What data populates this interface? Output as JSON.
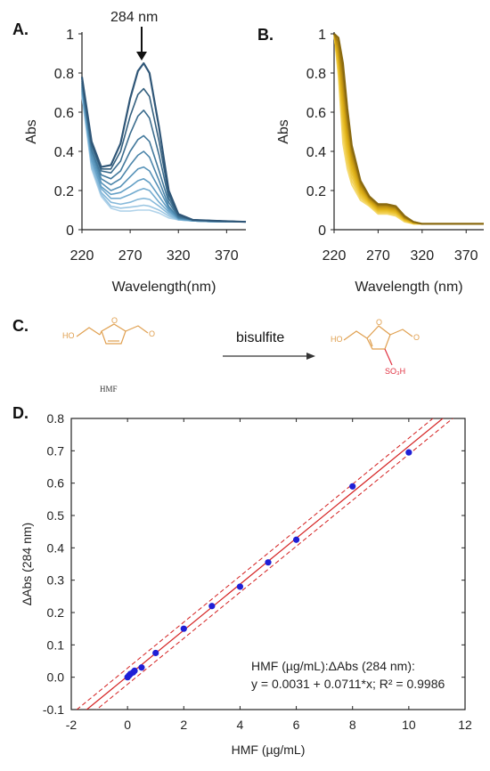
{
  "panels": {
    "A": "A.",
    "B": "B.",
    "C": "C.",
    "D": "D."
  },
  "reaction": {
    "reagent": "bisulfite",
    "reactant_label": "HMF",
    "oh_left": "HO",
    "oh_right": "HO",
    "o_ring_left": "O",
    "o_ald_left": "O",
    "o_ring_right": "O",
    "o_ald_right": "O",
    "so3h": "SO₃H",
    "colors": {
      "skeleton": "#e0a050",
      "sulfonate": "#e03040"
    }
  },
  "chart_data": [
    {
      "id": "A",
      "type": "line",
      "title": "",
      "xlabel": "Wavelength(nm)",
      "ylabel": "Abs",
      "xlim": [
        220,
        390
      ],
      "ylim": [
        0,
        1
      ],
      "xticks": [
        220,
        270,
        320,
        370
      ],
      "yticks": [
        0,
        0.2,
        0.4,
        0.6,
        0.8,
        1
      ],
      "annotation": {
        "text": "284 nm",
        "x": 284,
        "y": 0.86
      },
      "x": [
        220,
        230,
        240,
        250,
        260,
        270,
        278,
        284,
        290,
        300,
        310,
        320,
        335,
        360,
        390
      ],
      "series": [
        {
          "values": [
            0.78,
            0.45,
            0.32,
            0.33,
            0.44,
            0.67,
            0.81,
            0.85,
            0.8,
            0.52,
            0.2,
            0.08,
            0.05,
            0.045,
            0.04
          ]
        },
        {
          "values": [
            0.77,
            0.44,
            0.31,
            0.31,
            0.4,
            0.58,
            0.69,
            0.72,
            0.68,
            0.45,
            0.18,
            0.075,
            0.05,
            0.045,
            0.04
          ]
        },
        {
          "values": [
            0.76,
            0.43,
            0.3,
            0.29,
            0.35,
            0.49,
            0.58,
            0.61,
            0.57,
            0.38,
            0.16,
            0.07,
            0.05,
            0.045,
            0.04
          ]
        },
        {
          "values": [
            0.75,
            0.41,
            0.28,
            0.26,
            0.3,
            0.4,
            0.46,
            0.48,
            0.45,
            0.3,
            0.14,
            0.065,
            0.05,
            0.045,
            0.04
          ]
        },
        {
          "values": [
            0.74,
            0.4,
            0.26,
            0.23,
            0.26,
            0.33,
            0.38,
            0.4,
            0.37,
            0.25,
            0.12,
            0.06,
            0.05,
            0.045,
            0.04
          ]
        },
        {
          "values": [
            0.73,
            0.38,
            0.24,
            0.2,
            0.22,
            0.27,
            0.31,
            0.32,
            0.3,
            0.21,
            0.11,
            0.06,
            0.045,
            0.04,
            0.04
          ]
        },
        {
          "values": [
            0.72,
            0.36,
            0.22,
            0.18,
            0.19,
            0.22,
            0.25,
            0.26,
            0.24,
            0.17,
            0.1,
            0.055,
            0.045,
            0.04,
            0.04
          ]
        },
        {
          "values": [
            0.71,
            0.35,
            0.21,
            0.16,
            0.16,
            0.18,
            0.2,
            0.21,
            0.2,
            0.14,
            0.09,
            0.055,
            0.045,
            0.04,
            0.04
          ]
        },
        {
          "values": [
            0.7,
            0.33,
            0.19,
            0.14,
            0.13,
            0.14,
            0.155,
            0.16,
            0.155,
            0.12,
            0.08,
            0.05,
            0.045,
            0.04,
            0.04
          ]
        },
        {
          "values": [
            0.69,
            0.32,
            0.18,
            0.12,
            0.11,
            0.115,
            0.12,
            0.125,
            0.12,
            0.1,
            0.07,
            0.05,
            0.045,
            0.04,
            0.04
          ]
        },
        {
          "values": [
            0.68,
            0.31,
            0.17,
            0.11,
            0.095,
            0.095,
            0.1,
            0.1,
            0.1,
            0.085,
            0.06,
            0.05,
            0.045,
            0.04,
            0.04
          ]
        }
      ],
      "colors": [
        "#2f5677",
        "#34607f",
        "#3b6c8d",
        "#42789b",
        "#4b85aa",
        "#5692b8",
        "#639fc5",
        "#74acd0",
        "#86b9da",
        "#9bc6e2",
        "#b1d3ea"
      ]
    },
    {
      "id": "B",
      "type": "line",
      "title": "",
      "xlabel": "Wavelength (nm)",
      "ylabel": "Abs",
      "xlim": [
        220,
        390
      ],
      "ylim": [
        0,
        1
      ],
      "xticks": [
        220,
        270,
        320,
        370
      ],
      "yticks": [
        0,
        0.2,
        0.4,
        0.6,
        0.8,
        1
      ],
      "x": [
        220,
        225,
        230,
        235,
        240,
        250,
        260,
        270,
        280,
        290,
        300,
        310,
        320,
        340,
        370,
        390
      ],
      "series": [
        {
          "values": [
            1.0,
            0.98,
            0.85,
            0.62,
            0.43,
            0.25,
            0.17,
            0.13,
            0.13,
            0.12,
            0.07,
            0.04,
            0.03,
            0.03,
            0.03,
            0.03
          ]
        },
        {
          "values": [
            1.0,
            0.96,
            0.8,
            0.58,
            0.41,
            0.24,
            0.165,
            0.125,
            0.125,
            0.115,
            0.065,
            0.04,
            0.03,
            0.03,
            0.03,
            0.03
          ]
        },
        {
          "values": [
            1.0,
            0.94,
            0.76,
            0.55,
            0.39,
            0.23,
            0.16,
            0.12,
            0.12,
            0.11,
            0.06,
            0.04,
            0.03,
            0.03,
            0.03,
            0.03
          ]
        },
        {
          "values": [
            1.0,
            0.92,
            0.72,
            0.52,
            0.37,
            0.22,
            0.155,
            0.115,
            0.115,
            0.105,
            0.06,
            0.04,
            0.03,
            0.03,
            0.03,
            0.03
          ]
        },
        {
          "values": [
            1.0,
            0.9,
            0.68,
            0.49,
            0.35,
            0.21,
            0.15,
            0.11,
            0.11,
            0.1,
            0.055,
            0.035,
            0.03,
            0.03,
            0.03,
            0.03
          ]
        },
        {
          "values": [
            1.0,
            0.88,
            0.64,
            0.46,
            0.33,
            0.2,
            0.145,
            0.105,
            0.105,
            0.095,
            0.055,
            0.035,
            0.03,
            0.03,
            0.03,
            0.03
          ]
        },
        {
          "values": [
            1.0,
            0.86,
            0.6,
            0.43,
            0.31,
            0.19,
            0.14,
            0.1,
            0.1,
            0.09,
            0.05,
            0.035,
            0.03,
            0.03,
            0.03,
            0.03
          ]
        },
        {
          "values": [
            1.0,
            0.84,
            0.56,
            0.4,
            0.29,
            0.18,
            0.135,
            0.095,
            0.095,
            0.085,
            0.05,
            0.035,
            0.03,
            0.03,
            0.03,
            0.03
          ]
        },
        {
          "values": [
            1.0,
            0.82,
            0.52,
            0.37,
            0.27,
            0.17,
            0.13,
            0.09,
            0.09,
            0.08,
            0.045,
            0.03,
            0.03,
            0.03,
            0.03,
            0.03
          ]
        },
        {
          "values": [
            1.0,
            0.8,
            0.48,
            0.34,
            0.25,
            0.16,
            0.125,
            0.085,
            0.085,
            0.075,
            0.045,
            0.03,
            0.03,
            0.03,
            0.03,
            0.03
          ]
        },
        {
          "values": [
            1.0,
            0.78,
            0.44,
            0.31,
            0.23,
            0.15,
            0.12,
            0.08,
            0.08,
            0.07,
            0.04,
            0.03,
            0.03,
            0.03,
            0.03,
            0.03
          ]
        }
      ],
      "colors": [
        "#8a6a10",
        "#a07a10",
        "#b58a12",
        "#c59812",
        "#d4a514",
        "#ddb018",
        "#e4b923",
        "#eac232",
        "#efca44",
        "#f2d25a",
        "#f5da70"
      ]
    },
    {
      "id": "D",
      "type": "scatter",
      "title": "",
      "xlabel": "HMF (µg/mL)",
      "ylabel": "ΔAbs (284 nm)",
      "xlim": [
        -2,
        12
      ],
      "ylim": [
        -0.1,
        0.8
      ],
      "xticks": [
        -2,
        0,
        2,
        4,
        6,
        8,
        10,
        12
      ],
      "yticks": [
        -0.1,
        0.0,
        0.1,
        0.2,
        0.3,
        0.4,
        0.5,
        0.6,
        0.7,
        0.8
      ],
      "ytick_labels": [
        "-0.1",
        "0.0",
        "0.1",
        "0.2",
        "0.3",
        "0.4",
        "0.5",
        "0.6",
        "0.7",
        "0.8"
      ],
      "points": {
        "x": [
          0,
          0.05,
          0.1,
          0.2,
          0.25,
          0.5,
          1,
          2,
          3,
          4,
          5,
          6,
          8,
          10
        ],
        "y": [
          0.0,
          0.005,
          0.01,
          0.015,
          0.02,
          0.03,
          0.075,
          0.15,
          0.22,
          0.28,
          0.355,
          0.425,
          0.59,
          0.695
        ]
      },
      "fit": {
        "intercept": 0.0031,
        "slope": 0.0711,
        "band": 0.025
      },
      "equation_line1": "HMF (µg/mL):ΔAbs (284 nm):",
      "equation_line2": "y = 0.0031 + 0.0711*x; R² = 0.9986",
      "colors": {
        "points": "#1f1fd6",
        "fit": "#d42020",
        "band": "#d42020"
      }
    }
  ]
}
